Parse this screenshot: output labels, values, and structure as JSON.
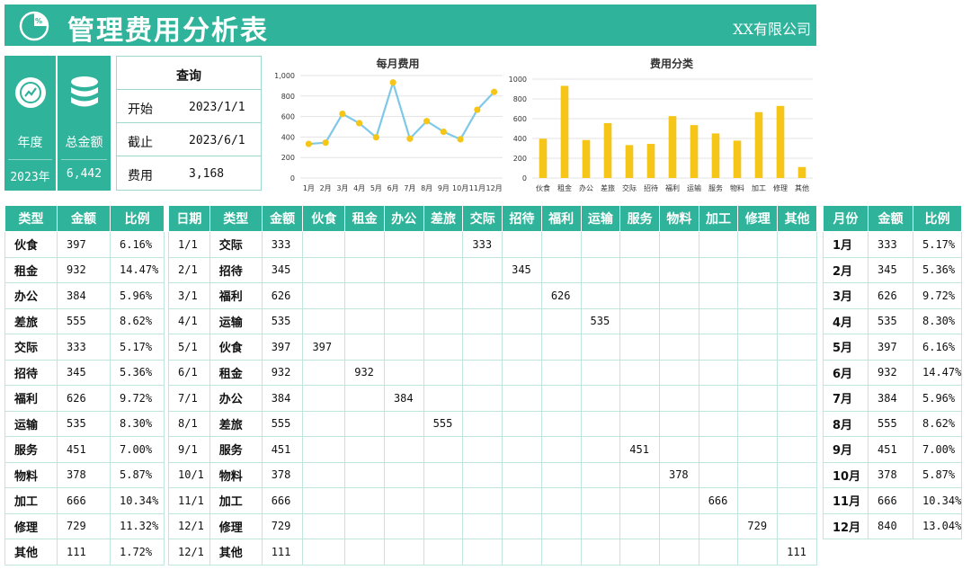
{
  "header": {
    "title": "管理费用分析表",
    "company": "XX有限公司",
    "logo_icon": "pie-chart-percent-icon"
  },
  "kpi": {
    "year_label": "年度",
    "year_value": "2023年",
    "year_icon": "trend-chart-icon",
    "total_label": "总金额",
    "total_value": "6,442",
    "total_icon": "coins-stack-icon"
  },
  "query": {
    "title": "查询",
    "start_label": "开始",
    "start_value": "2023/1/1",
    "end_label": "截止",
    "end_value": "2023/6/1",
    "cost_label": "费用",
    "cost_value": "3,168"
  },
  "colors": {
    "accent": "#2fb39a",
    "line": "#7ec8e8",
    "marker": "#f5c518",
    "bar": "#f5c518"
  },
  "chart_data": [
    {
      "type": "line",
      "title": "每月费用",
      "categories": [
        "1月",
        "2月",
        "3月",
        "4月",
        "5月",
        "6月",
        "7月",
        "8月",
        "9月",
        "10月",
        "11月",
        "12月"
      ],
      "values": [
        333,
        345,
        626,
        535,
        397,
        932,
        384,
        555,
        451,
        378,
        666,
        840
      ],
      "ylim": [
        0,
        1000
      ],
      "yticks": [
        "0",
        "200",
        "400",
        "600",
        "800",
        "1,000"
      ],
      "grid": true
    },
    {
      "type": "bar",
      "title": "费用分类",
      "categories": [
        "伙食",
        "租金",
        "办公",
        "差旅",
        "交际",
        "招待",
        "福利",
        "运输",
        "服务",
        "物料",
        "加工",
        "修理",
        "其他"
      ],
      "values": [
        397,
        932,
        384,
        555,
        333,
        345,
        626,
        535,
        451,
        378,
        666,
        729,
        111
      ],
      "ylim": [
        0,
        1000
      ],
      "yticks": [
        "0",
        "200",
        "400",
        "600",
        "800",
        "1000"
      ],
      "grid": true
    }
  ],
  "category_table": {
    "headers": [
      "类型",
      "金额",
      "比例"
    ],
    "rows": [
      [
        "伙食",
        "397",
        "6.16%"
      ],
      [
        "租金",
        "932",
        "14.47%"
      ],
      [
        "办公",
        "384",
        "5.96%"
      ],
      [
        "差旅",
        "555",
        "8.62%"
      ],
      [
        "交际",
        "333",
        "5.17%"
      ],
      [
        "招待",
        "345",
        "5.36%"
      ],
      [
        "福利",
        "626",
        "9.72%"
      ],
      [
        "运输",
        "535",
        "8.30%"
      ],
      [
        "服务",
        "451",
        "7.00%"
      ],
      [
        "物料",
        "378",
        "5.87%"
      ],
      [
        "加工",
        "666",
        "10.34%"
      ],
      [
        "修理",
        "729",
        "11.32%"
      ],
      [
        "其他",
        "111",
        "1.72%"
      ]
    ]
  },
  "detail_table": {
    "headers": [
      "日期",
      "类型",
      "金额",
      "伙食",
      "租金",
      "办公",
      "差旅",
      "交际",
      "招待",
      "福利",
      "运输",
      "服务",
      "物料",
      "加工",
      "修理",
      "其他"
    ],
    "rows": [
      [
        "1/1",
        "交际",
        "333",
        "",
        "",
        "",
        "",
        "333",
        "",
        "",
        "",
        "",
        "",
        "",
        "",
        ""
      ],
      [
        "2/1",
        "招待",
        "345",
        "",
        "",
        "",
        "",
        "",
        "345",
        "",
        "",
        "",
        "",
        "",
        "",
        ""
      ],
      [
        "3/1",
        "福利",
        "626",
        "",
        "",
        "",
        "",
        "",
        "",
        "626",
        "",
        "",
        "",
        "",
        "",
        ""
      ],
      [
        "4/1",
        "运输",
        "535",
        "",
        "",
        "",
        "",
        "",
        "",
        "",
        "535",
        "",
        "",
        "",
        "",
        ""
      ],
      [
        "5/1",
        "伙食",
        "397",
        "397",
        "",
        "",
        "",
        "",
        "",
        "",
        "",
        "",
        "",
        "",
        "",
        ""
      ],
      [
        "6/1",
        "租金",
        "932",
        "",
        "932",
        "",
        "",
        "",
        "",
        "",
        "",
        "",
        "",
        "",
        "",
        ""
      ],
      [
        "7/1",
        "办公",
        "384",
        "",
        "",
        "384",
        "",
        "",
        "",
        "",
        "",
        "",
        "",
        "",
        "",
        ""
      ],
      [
        "8/1",
        "差旅",
        "555",
        "",
        "",
        "",
        "555",
        "",
        "",
        "",
        "",
        "",
        "",
        "",
        "",
        ""
      ],
      [
        "9/1",
        "服务",
        "451",
        "",
        "",
        "",
        "",
        "",
        "",
        "",
        "",
        "451",
        "",
        "",
        "",
        ""
      ],
      [
        "10/1",
        "物料",
        "378",
        "",
        "",
        "",
        "",
        "",
        "",
        "",
        "",
        "",
        "378",
        "",
        "",
        ""
      ],
      [
        "11/1",
        "加工",
        "666",
        "",
        "",
        "",
        "",
        "",
        "",
        "",
        "",
        "",
        "",
        "666",
        "",
        ""
      ],
      [
        "12/1",
        "修理",
        "729",
        "",
        "",
        "",
        "",
        "",
        "",
        "",
        "",
        "",
        "",
        "",
        "729",
        ""
      ],
      [
        "12/1",
        "其他",
        "111",
        "",
        "",
        "",
        "",
        "",
        "",
        "",
        "",
        "",
        "",
        "",
        "",
        "111"
      ]
    ]
  },
  "month_table": {
    "headers": [
      "月份",
      "金额",
      "比例"
    ],
    "rows": [
      [
        "1月",
        "333",
        "5.17%"
      ],
      [
        "2月",
        "345",
        "5.36%"
      ],
      [
        "3月",
        "626",
        "9.72%"
      ],
      [
        "4月",
        "535",
        "8.30%"
      ],
      [
        "5月",
        "397",
        "6.16%"
      ],
      [
        "6月",
        "932",
        "14.47%"
      ],
      [
        "7月",
        "384",
        "5.96%"
      ],
      [
        "8月",
        "555",
        "8.62%"
      ],
      [
        "9月",
        "451",
        "7.00%"
      ],
      [
        "10月",
        "378",
        "5.87%"
      ],
      [
        "11月",
        "666",
        "10.34%"
      ],
      [
        "12月",
        "840",
        "13.04%"
      ]
    ]
  }
}
